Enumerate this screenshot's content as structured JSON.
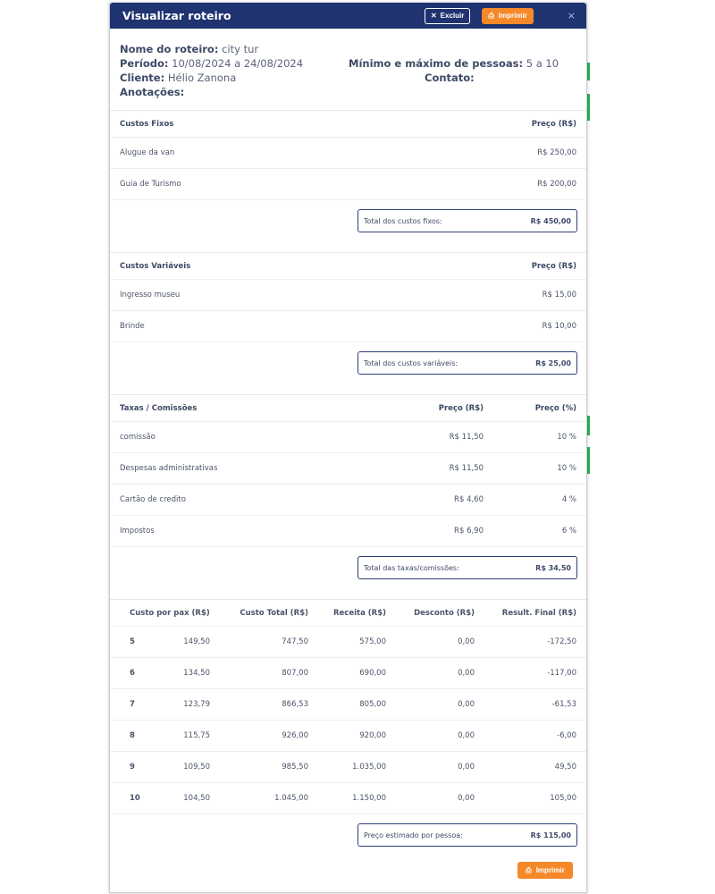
{
  "header": {
    "title": "Visualizar roteiro",
    "delete_label": "Excluir",
    "print_label": "Imprimir",
    "close": "×"
  },
  "info": {
    "name_label": "Nome do roteiro:",
    "name": "city tur",
    "period_label": "Período:",
    "period": "10/08/2024 a 24/08/2024",
    "client_label": "Cliente:",
    "client": "Hélio Zanona",
    "notes_label": "Anotações:",
    "minmax_label": "Mínimo e máximo de pessoas:",
    "minmax": "5 a 10",
    "contact_label": "Contato:"
  },
  "fixed": {
    "title": "Custos Fixos",
    "price_header": "Preço (R$)",
    "items": [
      {
        "name": "Alugue da van",
        "price": "R$ 250,00"
      },
      {
        "name": "Guia de Turismo",
        "price": "R$ 200,00"
      }
    ],
    "total_label": "Total dos custos fixos:",
    "total": "R$ 450,00"
  },
  "variable": {
    "title": "Custos Variáveis",
    "price_header": "Preço (R$)",
    "items": [
      {
        "name": "Ingresso museu",
        "price": "R$ 15,00"
      },
      {
        "name": "Brinde",
        "price": "R$ 10,00"
      }
    ],
    "total_label": "Total dos custos variáveis:",
    "total": "R$ 25,00"
  },
  "fees": {
    "title": "Taxas / Comissões",
    "price_header": "Preço (R$)",
    "pct_header": "Preço (%)",
    "items": [
      {
        "name": "comissão",
        "price": "R$ 11,50",
        "pct": "10 %"
      },
      {
        "name": "Despesas administrativas",
        "price": "R$ 11,50",
        "pct": "10 %"
      },
      {
        "name": "Cartão de credito",
        "price": "R$ 4,60",
        "pct": "4 %"
      },
      {
        "name": "Impostos",
        "price": "R$ 6,90",
        "pct": "6 %"
      }
    ],
    "total_label": "Total das taxas/comissões:",
    "total": "R$ 34,50"
  },
  "summary": {
    "headers": [
      "Custo por pax (R$)",
      "Custo Total (R$)",
      "Receita (R$)",
      "Desconto (R$)",
      "Result. Final (R$)"
    ],
    "rows": [
      {
        "pax": "5",
        "per_pax": "149,50",
        "total": "747,50",
        "revenue": "575,00",
        "discount": "0,00",
        "result": "-172,50"
      },
      {
        "pax": "6",
        "per_pax": "134,50",
        "total": "807,00",
        "revenue": "690,00",
        "discount": "0,00",
        "result": "-117,00"
      },
      {
        "pax": "7",
        "per_pax": "123,79",
        "total": "866,53",
        "revenue": "805,00",
        "discount": "0,00",
        "result": "-61,53"
      },
      {
        "pax": "8",
        "per_pax": "115,75",
        "total": "926,00",
        "revenue": "920,00",
        "discount": "0,00",
        "result": "-6,00"
      },
      {
        "pax": "9",
        "per_pax": "109,50",
        "total": "985,50",
        "revenue": "1.035,00",
        "discount": "0,00",
        "result": "49,50"
      },
      {
        "pax": "10",
        "per_pax": "104,50",
        "total": "1.045,00",
        "revenue": "1.150,00",
        "discount": "0,00",
        "result": "105,00"
      }
    ],
    "estimate_label": "Preço estimado por pessoa:",
    "estimate": "R$ 115,00"
  },
  "footer": {
    "print_label": "Imprimir"
  },
  "colors": {
    "header": "#1f3370",
    "accent": "#f5892a"
  }
}
